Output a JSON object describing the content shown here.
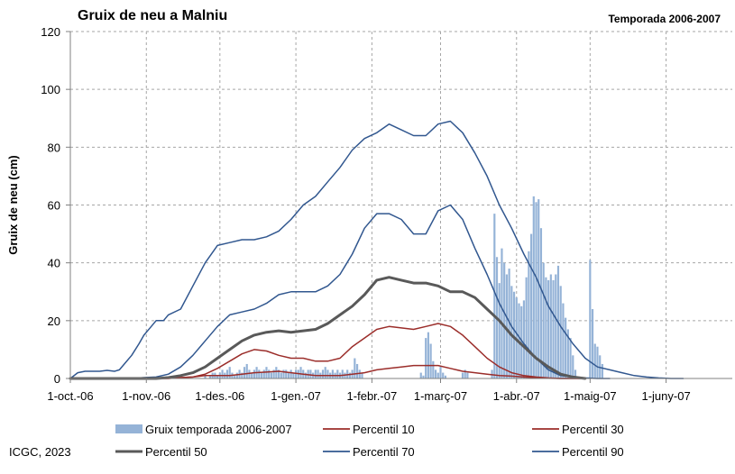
{
  "header": {
    "title": "Gruix de neu a Malniu",
    "season": "Temporada 2006-2007"
  },
  "footer": {
    "credit": "ICGC, 2023"
  },
  "chart_data": {
    "type": "bar+line",
    "title": "Gruix de neu a Malniu",
    "subtitle": "Temporada 2006-2007",
    "xlabel": "",
    "ylabel": "Gruix de neu (cm)",
    "ylim": [
      0,
      120
    ],
    "yticks": [
      0,
      20,
      40,
      60,
      80,
      100,
      120
    ],
    "xlim_days": [
      0,
      270
    ],
    "xticks": [
      {
        "label": "1-oct.-06",
        "day": 0
      },
      {
        "label": "1-nov.-06",
        "day": 31
      },
      {
        "label": "1-des.-06",
        "day": 61
      },
      {
        "label": "1-gen.-07",
        "day": 92
      },
      {
        "label": "1-febr.-07",
        "day": 123
      },
      {
        "label": "1-març-07",
        "day": 151
      },
      {
        "label": "1-abr.-07",
        "day": 182
      },
      {
        "label": "1-maig-07",
        "day": 212
      },
      {
        "label": "1-juny-07",
        "day": 243
      }
    ],
    "grid": true,
    "legend_position": "bottom",
    "bars": {
      "name": "Gruix temporada 2006-2007",
      "color": "#95b3d7",
      "points": [
        [
          55,
          1
        ],
        [
          56,
          0
        ],
        [
          57,
          1
        ],
        [
          58,
          2
        ],
        [
          59,
          2
        ],
        [
          60,
          1
        ],
        [
          61,
          2
        ],
        [
          62,
          3
        ],
        [
          63,
          2
        ],
        [
          64,
          3
        ],
        [
          65,
          4
        ],
        [
          66,
          2
        ],
        [
          67,
          1
        ],
        [
          68,
          2
        ],
        [
          69,
          3
        ],
        [
          70,
          2
        ],
        [
          71,
          4
        ],
        [
          72,
          5
        ],
        [
          73,
          3
        ],
        [
          74,
          2
        ],
        [
          75,
          3
        ],
        [
          76,
          4
        ],
        [
          77,
          3
        ],
        [
          78,
          2
        ],
        [
          79,
          3
        ],
        [
          80,
          4
        ],
        [
          81,
          3
        ],
        [
          82,
          2
        ],
        [
          83,
          3
        ],
        [
          84,
          4
        ],
        [
          85,
          3
        ],
        [
          86,
          2
        ],
        [
          87,
          3
        ],
        [
          88,
          3
        ],
        [
          89,
          2
        ],
        [
          90,
          3
        ],
        [
          91,
          2
        ],
        [
          92,
          3
        ],
        [
          93,
          3
        ],
        [
          94,
          4
        ],
        [
          95,
          3
        ],
        [
          96,
          2
        ],
        [
          97,
          3
        ],
        [
          98,
          3
        ],
        [
          99,
          2
        ],
        [
          100,
          3
        ],
        [
          101,
          3
        ],
        [
          102,
          2
        ],
        [
          103,
          3
        ],
        [
          104,
          4
        ],
        [
          105,
          3
        ],
        [
          106,
          2
        ],
        [
          107,
          3
        ],
        [
          108,
          2
        ],
        [
          109,
          3
        ],
        [
          110,
          2
        ],
        [
          111,
          3
        ],
        [
          112,
          2
        ],
        [
          113,
          3
        ],
        [
          114,
          2
        ],
        [
          115,
          3
        ],
        [
          116,
          7
        ],
        [
          117,
          5
        ],
        [
          118,
          3
        ],
        [
          119,
          2
        ],
        [
          143,
          2
        ],
        [
          144,
          1
        ],
        [
          145,
          14
        ],
        [
          146,
          16
        ],
        [
          147,
          12
        ],
        [
          148,
          6
        ],
        [
          149,
          3
        ],
        [
          150,
          2
        ],
        [
          151,
          4
        ],
        [
          152,
          2
        ],
        [
          153,
          1
        ],
        [
          160,
          2
        ],
        [
          161,
          3
        ],
        [
          162,
          2
        ],
        [
          172,
          3
        ],
        [
          173,
          57
        ],
        [
          174,
          42
        ],
        [
          175,
          33
        ],
        [
          176,
          45
        ],
        [
          177,
          40
        ],
        [
          178,
          36
        ],
        [
          179,
          38
        ],
        [
          180,
          32
        ],
        [
          181,
          30
        ],
        [
          182,
          28
        ],
        [
          183,
          26
        ],
        [
          184,
          25
        ],
        [
          185,
          27
        ],
        [
          186,
          35
        ],
        [
          187,
          44
        ],
        [
          188,
          50
        ],
        [
          189,
          63
        ],
        [
          190,
          61
        ],
        [
          191,
          62
        ],
        [
          192,
          52
        ],
        [
          193,
          40
        ],
        [
          194,
          35
        ],
        [
          195,
          34
        ],
        [
          196,
          36
        ],
        [
          197,
          34
        ],
        [
          198,
          36
        ],
        [
          199,
          39
        ],
        [
          200,
          32
        ],
        [
          201,
          26
        ],
        [
          202,
          21
        ],
        [
          203,
          17
        ],
        [
          204,
          14
        ],
        [
          205,
          8
        ],
        [
          206,
          3
        ],
        [
          212,
          41
        ],
        [
          213,
          24
        ],
        [
          214,
          12
        ],
        [
          215,
          11
        ],
        [
          216,
          8
        ],
        [
          217,
          5
        ]
      ]
    },
    "series": [
      {
        "name": "Percentil 10",
        "color": "#9b2d2a",
        "width": 1.5,
        "x": [
          0,
          40,
          45,
          50,
          55,
          60,
          65,
          70,
          75,
          80,
          85,
          90,
          95,
          100,
          105,
          110,
          115,
          120,
          125,
          130,
          135,
          140,
          145,
          150,
          155,
          160,
          165,
          170,
          175,
          180,
          185,
          190,
          195,
          200,
          205,
          210
        ],
        "y": [
          0,
          0,
          0.3,
          0.5,
          1,
          1,
          1,
          1.5,
          2,
          2.2,
          2.5,
          2,
          1.5,
          1,
          1,
          1,
          1.5,
          2,
          3,
          3.5,
          4,
          4.5,
          4.5,
          4.5,
          3.5,
          2.5,
          2,
          1.5,
          1,
          0.8,
          0.5,
          0.3,
          0.1,
          0,
          0,
          0
        ]
      },
      {
        "name": "Percentil 30",
        "color": "#9b2d2a",
        "width": 1.5,
        "x": [
          0,
          40,
          45,
          50,
          55,
          60,
          65,
          70,
          75,
          80,
          85,
          90,
          95,
          100,
          105,
          110,
          115,
          120,
          125,
          130,
          135,
          140,
          145,
          150,
          155,
          160,
          165,
          170,
          175,
          180,
          185,
          190,
          195,
          200,
          205,
          210
        ],
        "y": [
          0,
          0,
          0.3,
          0.5,
          1.5,
          3.5,
          6,
          8.5,
          10,
          9.5,
          8,
          7,
          7,
          6,
          6,
          7,
          11,
          14,
          17,
          18,
          17.5,
          17,
          18,
          19,
          18,
          15,
          11,
          7,
          4,
          2,
          1,
          0.5,
          0.2,
          0,
          0,
          0
        ]
      },
      {
        "name": "Percentil 50",
        "color": "#595959",
        "width": 3,
        "x": [
          0,
          35,
          40,
          45,
          50,
          55,
          60,
          65,
          70,
          75,
          80,
          85,
          90,
          95,
          100,
          105,
          110,
          115,
          120,
          125,
          130,
          135,
          140,
          145,
          150,
          155,
          160,
          165,
          170,
          175,
          180,
          185,
          190,
          195,
          200,
          205,
          210
        ],
        "y": [
          0,
          0,
          0.3,
          1,
          2,
          4,
          7,
          10,
          13,
          15,
          16,
          16.5,
          16,
          16.5,
          17,
          19,
          22,
          25,
          29,
          34,
          35,
          34,
          33,
          33,
          32,
          30,
          30,
          28,
          24,
          20,
          15,
          11,
          7,
          4,
          1.5,
          0.5,
          0
        ]
      },
      {
        "name": "Percentil 70",
        "color": "#31578f",
        "width": 1.5,
        "x": [
          0,
          25,
          30,
          35,
          40,
          45,
          50,
          55,
          60,
          65,
          70,
          75,
          80,
          85,
          90,
          95,
          100,
          105,
          110,
          115,
          120,
          125,
          130,
          135,
          140,
          145,
          150,
          155,
          160,
          165,
          170,
          175,
          180,
          185,
          190,
          195,
          200,
          205,
          210,
          215,
          220
        ],
        "y": [
          0,
          0,
          0.3,
          0.5,
          1.5,
          4,
          8,
          13,
          18,
          22,
          23,
          24,
          26,
          29,
          30,
          30,
          30,
          32,
          36,
          43,
          52,
          57,
          57,
          55,
          50,
          50,
          58,
          60,
          55,
          45,
          36,
          26,
          18,
          12,
          7,
          3,
          1,
          0.5,
          0.2,
          0,
          0
        ]
      },
      {
        "name": "Percentil 90",
        "color": "#31578f",
        "width": 1.5,
        "x": [
          0,
          3,
          6,
          9,
          12,
          15,
          18,
          20,
          22,
          25,
          28,
          30,
          33,
          35,
          38,
          40,
          45,
          50,
          55,
          60,
          65,
          70,
          75,
          80,
          85,
          90,
          95,
          100,
          105,
          110,
          115,
          120,
          125,
          130,
          135,
          140,
          145,
          150,
          155,
          160,
          165,
          170,
          175,
          180,
          185,
          190,
          195,
          200,
          205,
          210,
          215,
          220,
          225,
          230,
          235,
          240,
          245,
          250
        ],
        "y": [
          0,
          2,
          2.5,
          2.5,
          2.5,
          2.8,
          2.5,
          3,
          5,
          8,
          12,
          15,
          18,
          20,
          20,
          22,
          24,
          32,
          40,
          46,
          47,
          48,
          48,
          49,
          51,
          55,
          60,
          63,
          68,
          73,
          79,
          83,
          85,
          88,
          86,
          84,
          84,
          88,
          89,
          85,
          78,
          70,
          60,
          52,
          43,
          35,
          25,
          18,
          12,
          7,
          4,
          3,
          2,
          1,
          0.5,
          0.2,
          0,
          0
        ]
      }
    ]
  },
  "legend": [
    {
      "label": "Gruix temporada 2006-2007",
      "kind": "bar",
      "color": "#95b3d7"
    },
    {
      "label": "Percentil 10",
      "kind": "line",
      "color": "#9b2d2a"
    },
    {
      "label": "Percentil 30",
      "kind": "line",
      "color": "#9b2d2a"
    },
    {
      "label": "Percentil 50",
      "kind": "line",
      "color": "#595959"
    },
    {
      "label": "Percentil 70",
      "kind": "line",
      "color": "#31578f"
    },
    {
      "label": "Percentil 90",
      "kind": "line",
      "color": "#31578f"
    }
  ]
}
